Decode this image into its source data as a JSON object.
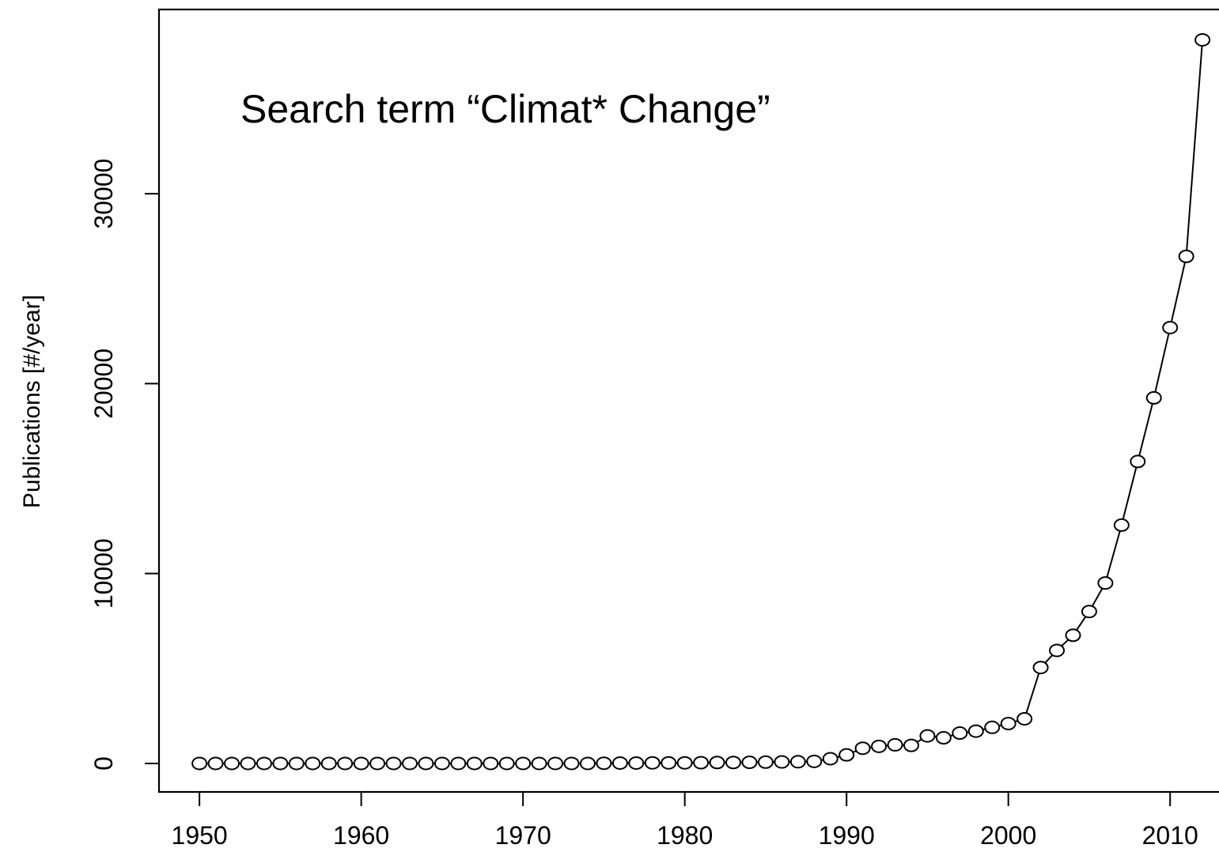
{
  "chart_data": {
    "type": "line",
    "annotation": "Search term “Climat* Change”",
    "xlabel": "",
    "ylabel": "Publications [#/year]",
    "xlim": [
      1947.5,
      2014
    ],
    "ylim": [
      -1500,
      39700
    ],
    "x_ticks": [
      1950,
      1960,
      1970,
      1980,
      1990,
      2000,
      2010
    ],
    "y_ticks": [
      0,
      10000,
      20000,
      30000
    ],
    "grid": false,
    "legend": "none",
    "marker": "open-circle",
    "series": [
      {
        "x": [
          1950,
          1951,
          1952,
          1953,
          1954,
          1955,
          1956,
          1957,
          1958,
          1959,
          1960,
          1961,
          1962,
          1963,
          1964,
          1965,
          1966,
          1967,
          1968,
          1969,
          1970,
          1971,
          1972,
          1973,
          1974,
          1975,
          1976,
          1977,
          1978,
          1979,
          1980,
          1981,
          1982,
          1983,
          1984,
          1985,
          1986,
          1987,
          1988,
          1989,
          1990,
          1991,
          1992,
          1993,
          1994,
          1995,
          1996,
          1997,
          1998,
          1999,
          2000,
          2001,
          2002,
          2003,
          2004,
          2005,
          2006,
          2007,
          2008,
          2009,
          2010,
          2011,
          2012
        ],
        "values": [
          0,
          0,
          0,
          0,
          0,
          0,
          0,
          0,
          0,
          0,
          0,
          0,
          0,
          0,
          0,
          0,
          0,
          0,
          0,
          0,
          0,
          0,
          0,
          0,
          0,
          10,
          20,
          20,
          30,
          30,
          30,
          40,
          50,
          50,
          60,
          70,
          80,
          90,
          110,
          250,
          450,
          800,
          900,
          980,
          950,
          1450,
          1350,
          1600,
          1700,
          1900,
          2100,
          2350,
          5050,
          5950,
          6750,
          8000,
          9500,
          12550,
          15900,
          19250,
          22950,
          26700,
          38100
        ]
      }
    ]
  }
}
